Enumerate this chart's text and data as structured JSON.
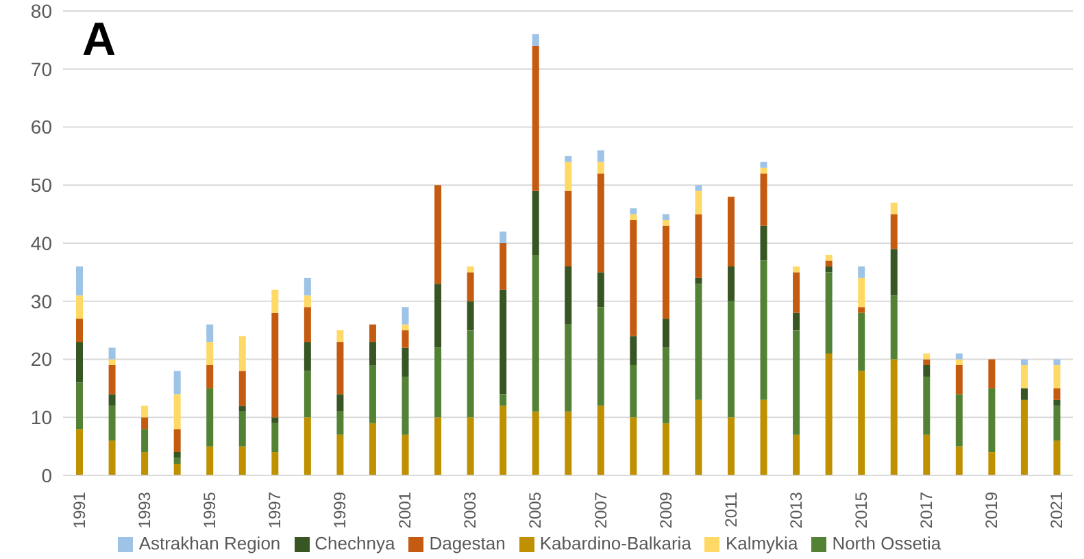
{
  "chart_data": {
    "type": "bar",
    "stacked": true,
    "categories": [
      "1991",
      null,
      "1993",
      null,
      "1995",
      null,
      "1997",
      null,
      "1999",
      null,
      "2001",
      null,
      "2003",
      null,
      "2005",
      null,
      "2007",
      null,
      "2009",
      null,
      "2011",
      null,
      "2013",
      null,
      "2015",
      null,
      "2017",
      null,
      "2019",
      null,
      "2021"
    ],
    "series": [
      {
        "name": "Kabardino-Balkaria",
        "color": "#bf9000",
        "values": [
          8,
          6,
          4,
          2,
          5,
          5,
          4,
          10,
          7,
          9,
          7,
          10,
          10,
          12,
          11,
          11,
          12,
          10,
          9,
          13,
          10,
          13,
          7,
          21,
          18,
          20,
          7,
          5,
          4,
          13,
          6
        ]
      },
      {
        "name": "North Ossetia",
        "color": "#548235",
        "values": [
          8,
          6,
          4,
          1,
          10,
          6,
          5,
          8,
          4,
          10,
          10,
          12,
          15,
          2,
          27,
          15,
          17,
          9,
          13,
          20,
          20,
          24,
          18,
          14,
          10,
          11,
          10,
          9,
          11,
          0,
          6
        ]
      },
      {
        "name": "Chechnya",
        "color": "#375623",
        "values": [
          7,
          2,
          0,
          1,
          0,
          1,
          1,
          5,
          3,
          4,
          5,
          11,
          5,
          18,
          11,
          10,
          6,
          5,
          5,
          1,
          6,
          6,
          3,
          1,
          0,
          8,
          2,
          0,
          0,
          2,
          1
        ]
      },
      {
        "name": "Dagestan",
        "color": "#c55a11",
        "values": [
          4,
          5,
          2,
          4,
          4,
          6,
          18,
          6,
          9,
          3,
          3,
          17,
          5,
          8,
          25,
          13,
          17,
          20,
          16,
          11,
          12,
          9,
          7,
          1,
          1,
          6,
          1,
          5,
          5,
          0,
          2
        ]
      },
      {
        "name": "Kalmykia",
        "color": "#ffd966",
        "values": [
          4,
          1,
          2,
          6,
          4,
          6,
          4,
          2,
          2,
          0,
          1,
          0,
          1,
          0,
          0,
          5,
          2,
          1,
          1,
          4,
          0,
          1,
          1,
          1,
          5,
          2,
          1,
          1,
          0,
          4,
          4
        ]
      },
      {
        "name": "Astrakhan Region",
        "color": "#9dc3e6",
        "values": [
          5,
          2,
          0,
          4,
          3,
          0,
          0,
          3,
          0,
          0,
          3,
          0,
          0,
          2,
          2,
          1,
          2,
          1,
          1,
          1,
          0,
          1,
          0,
          0,
          2,
          0,
          0,
          1,
          0,
          1,
          1
        ]
      }
    ],
    "ylim": [
      0,
      80
    ],
    "yticks": [
      0,
      10,
      20,
      30,
      40,
      50,
      60,
      70,
      80
    ],
    "grid": "y",
    "legend": "bottom",
    "annotations": [
      "A"
    ]
  }
}
